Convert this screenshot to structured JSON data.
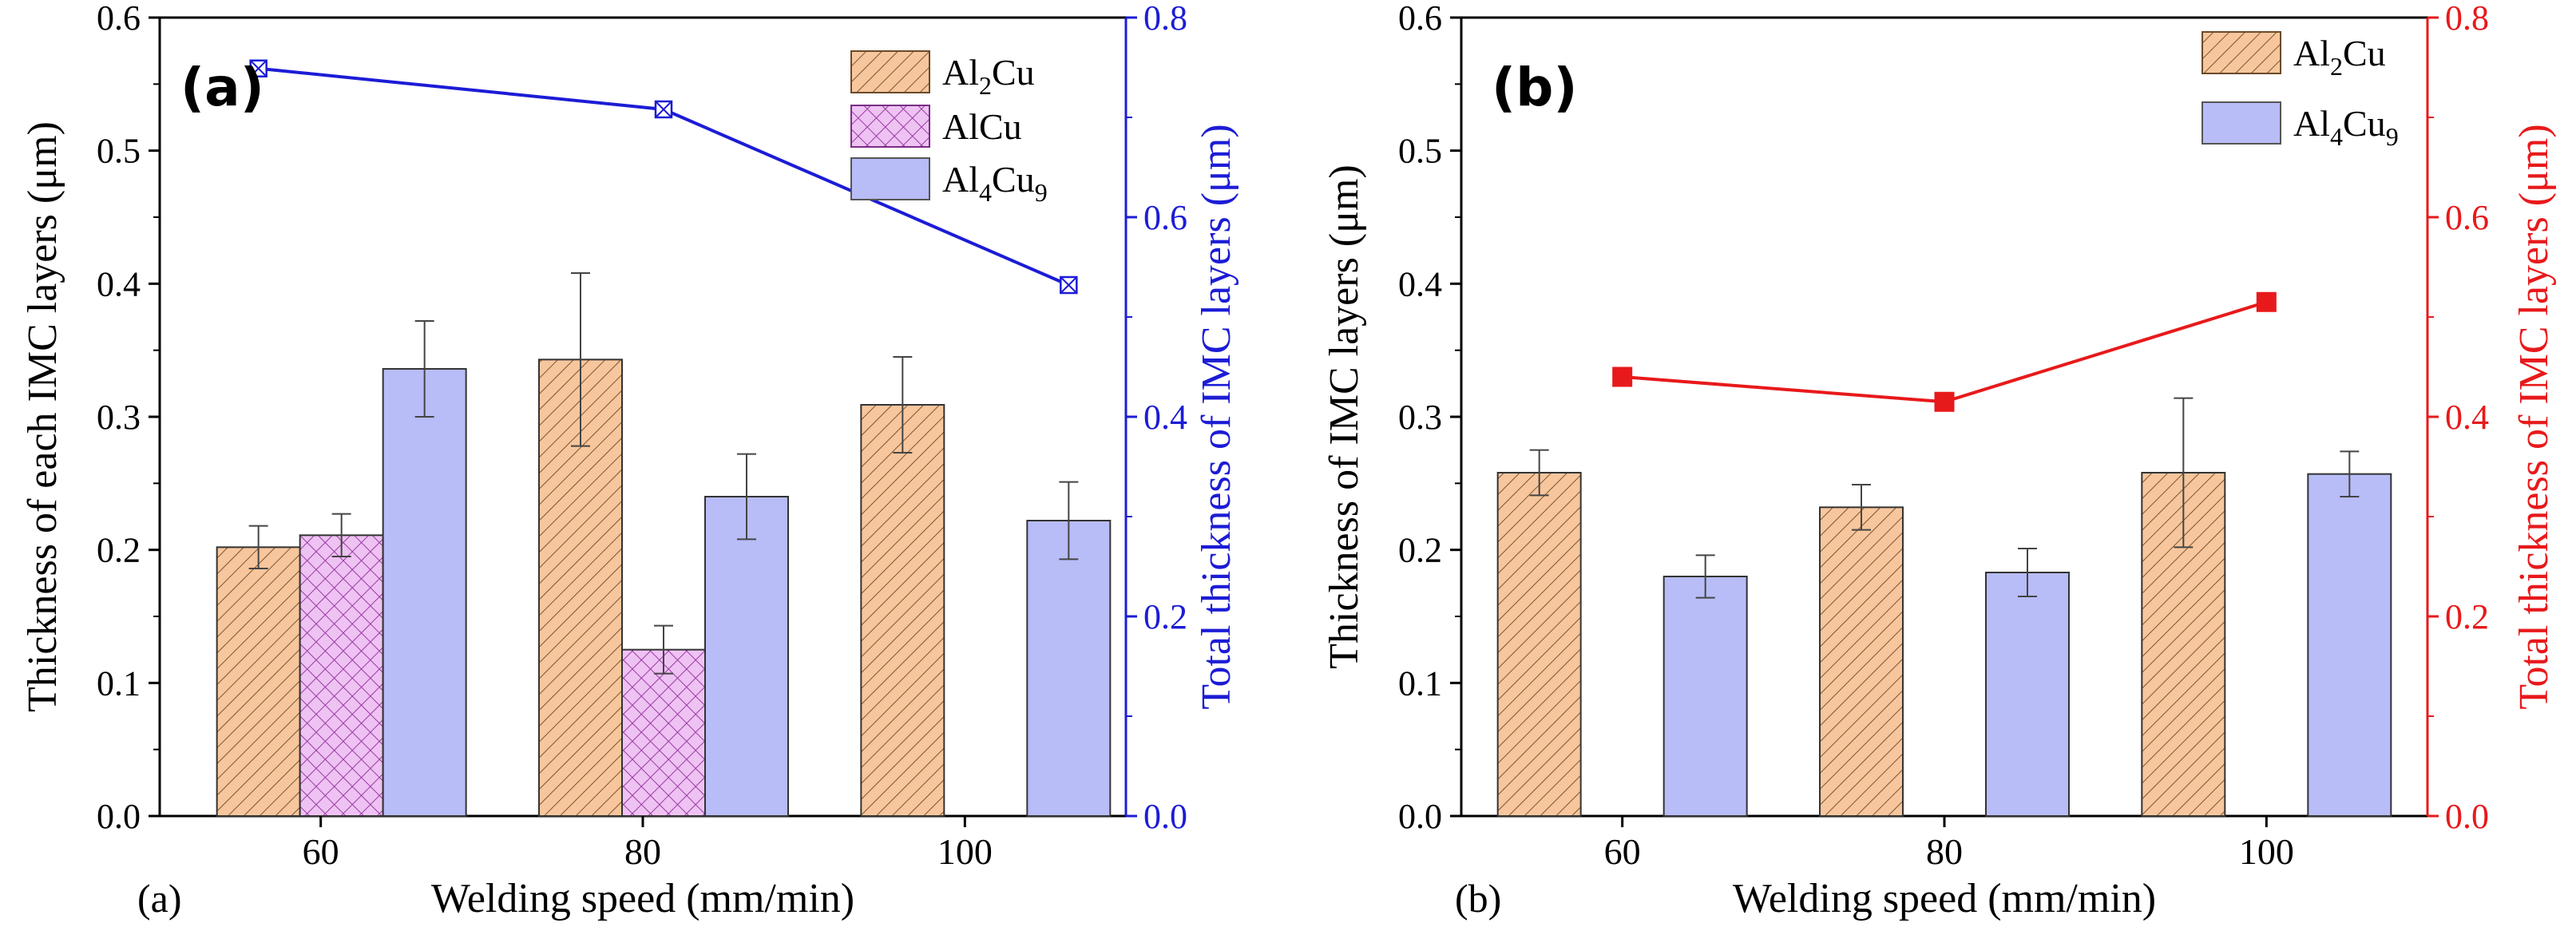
{
  "chart_data": [
    {
      "type": "bar",
      "panel_tag": "(a)",
      "bottom_caption": "(a)",
      "categories": [
        "60",
        "80",
        "100"
      ],
      "xlabel": "Welding speed (mm/min)",
      "ylabel": "Thickness of each IMC layers (μm)",
      "ylabel_right": "Total thickness of IMC layers (μm)",
      "ylim": [
        0,
        0.6
      ],
      "ylim_right": [
        0,
        0.8
      ],
      "yticks": [
        "0.0",
        "0.1",
        "0.2",
        "0.3",
        "0.4",
        "0.5",
        "0.6"
      ],
      "yticks_right": [
        "0.0",
        "0.2",
        "0.4",
        "0.6",
        "0.8"
      ],
      "series": [
        {
          "name": "Al2Cu",
          "label_base": "Al",
          "label_sub": "2",
          "label_tail": "Cu",
          "pattern": "diag",
          "values": [
            0.202,
            0.343,
            0.309
          ],
          "errors": [
            0.016,
            0.065,
            0.036
          ]
        },
        {
          "name": "AlCu",
          "label_base": "AlCu",
          "label_sub": "",
          "label_tail": "",
          "pattern": "cross",
          "values": [
            0.211,
            0.125,
            null
          ],
          "errors": [
            0.016,
            0.018,
            null
          ]
        },
        {
          "name": "Al4Cu9",
          "label_base": "Al",
          "label_sub": "4",
          "label_tail": "Cu",
          "label_sub2": "9",
          "pattern": "solid",
          "values": [
            0.336,
            0.24,
            0.222
          ],
          "errors": [
            0.036,
            0.032,
            0.029
          ]
        }
      ],
      "line": {
        "name": "Total thickness",
        "axis": "right",
        "x": [
          "60",
          "80",
          "100"
        ],
        "values": [
          0.749,
          0.708,
          0.532
        ],
        "color": "#1c1cd6",
        "marker": "boxed-x"
      },
      "colors": {
        "diag_fill": "#f7c69c",
        "diag_stroke": "#7a5533",
        "cross_fill": "#eec2f2",
        "cross_stroke": "#9a3aa6",
        "solid_fill": "#b8bcf7",
        "right_axis": "#1c1cd6"
      }
    },
    {
      "type": "bar",
      "panel_tag": "(b)",
      "bottom_caption": "(b)",
      "categories": [
        "60",
        "80",
        "100"
      ],
      "xlabel": "Welding speed (mm/min)",
      "ylabel": "Thickness of IMC layers (μm)",
      "ylabel_right": "Total thickness of IMC layers (μm)",
      "ylim": [
        0,
        0.6
      ],
      "ylim_right": [
        0,
        0.8
      ],
      "yticks": [
        "0.0",
        "0.1",
        "0.2",
        "0.3",
        "0.4",
        "0.5",
        "0.6"
      ],
      "yticks_right": [
        "0.0",
        "0.2",
        "0.4",
        "0.6",
        "0.8"
      ],
      "series": [
        {
          "name": "Al2Cu",
          "label_base": "Al",
          "label_sub": "2",
          "label_tail": "Cu",
          "pattern": "diag",
          "values": [
            0.258,
            0.232,
            0.258
          ],
          "errors": [
            0.017,
            0.017,
            0.056
          ]
        },
        {
          "name": "Al4Cu9",
          "label_base": "Al",
          "label_sub": "4",
          "label_tail": "Cu",
          "label_sub2": "9",
          "pattern": "solid",
          "values": [
            0.18,
            0.183,
            0.257
          ],
          "errors": [
            0.016,
            0.018,
            0.017
          ]
        }
      ],
      "line": {
        "name": "Total thickness",
        "axis": "right",
        "x": [
          "60",
          "80",
          "100"
        ],
        "values": [
          0.44,
          0.415,
          0.515
        ],
        "color": "#e8191b",
        "marker": "square"
      },
      "colors": {
        "diag_fill": "#f7c69c",
        "diag_stroke": "#7a5533",
        "solid_fill": "#b8bcf7",
        "right_axis": "#e8191b"
      }
    }
  ]
}
